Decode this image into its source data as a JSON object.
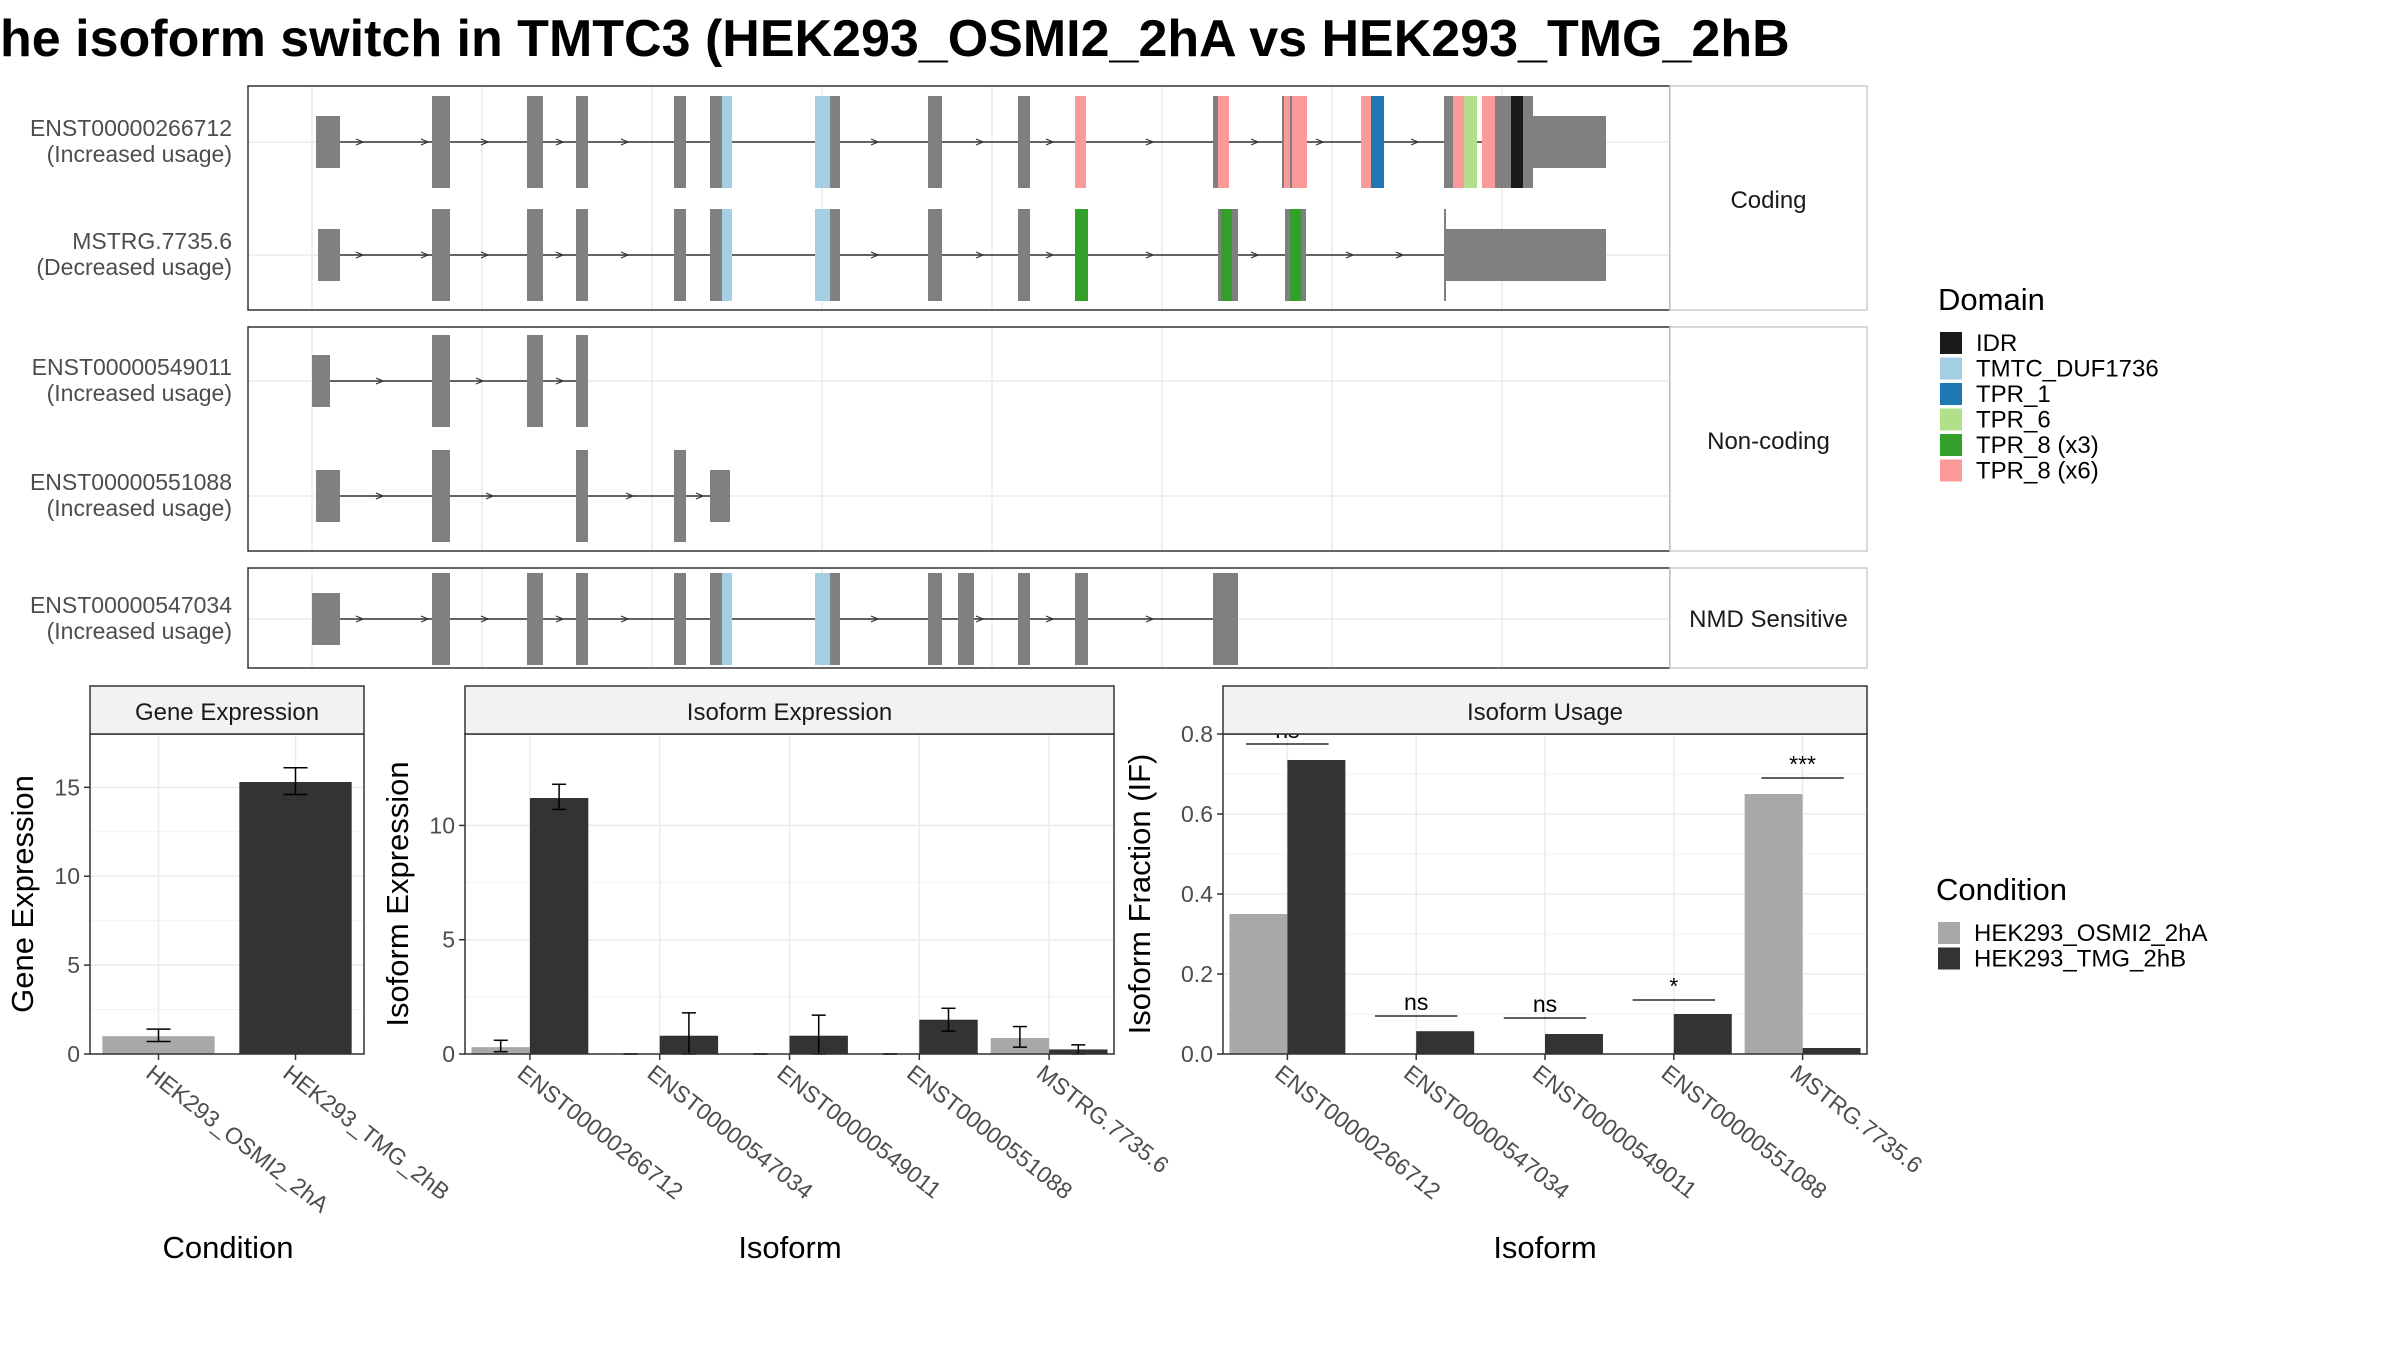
{
  "title": "he isoform switch in TMTC3 (HEK293_OSMI2_2hA vs HEK293_TMG_2hB",
  "colors": {
    "exon": "#808080",
    "cond_a": "#A9A9A9",
    "cond_b": "#333333",
    "IDR": "#1a1a1a",
    "TMTC_DUF1736": "#A6CEE3",
    "TPR_1": "#1F78B4",
    "TPR_6": "#B2DF8A",
    "TPR_8_x3": "#33A02C",
    "TPR_8_x6": "#FB9A99"
  },
  "transcript_panel": {
    "facets": [
      {
        "label": "Coding",
        "transcripts": [
          {
            "id": "ENST00000266712",
            "usage": "(Increased usage)"
          },
          {
            "id": "MSTRG.7735.6",
            "usage": "(Decreased usage)"
          }
        ]
      },
      {
        "label": "Non-coding",
        "transcripts": [
          {
            "id": "ENST00000549011",
            "usage": "(Increased usage)"
          },
          {
            "id": "ENST00000551088",
            "usage": "(Increased usage)"
          }
        ]
      },
      {
        "label": "NMD Sensitive",
        "transcripts": [
          {
            "id": "ENST00000547034",
            "usage": "(Increased usage)"
          }
        ]
      }
    ]
  },
  "legend_domain": {
    "title": "Domain",
    "entries": [
      {
        "label": "IDR",
        "color": "#1a1a1a"
      },
      {
        "label": "TMTC_DUF1736",
        "color": "#A6CEE3"
      },
      {
        "label": "TPR_1",
        "color": "#1F78B4"
      },
      {
        "label": "TPR_6",
        "color": "#B2DF8A"
      },
      {
        "label": "TPR_8 (x3)",
        "color": "#33A02C"
      },
      {
        "label": "TPR_8 (x6)",
        "color": "#FB9A99"
      }
    ]
  },
  "legend_condition": {
    "title": "Condition",
    "entries": [
      {
        "label": "HEK293_OSMI2_2hA",
        "color": "#A9A9A9"
      },
      {
        "label": "HEK293_TMG_2hB",
        "color": "#333333"
      }
    ]
  },
  "chart_data": [
    {
      "type": "bar",
      "title": "Gene Expression",
      "xlabel": "Condition",
      "ylabel": "Gene Expression",
      "ylim": [
        0,
        18
      ],
      "yticks": [
        0,
        5,
        10,
        15
      ],
      "categories": [
        "HEK293_OSMI2_2hA",
        "HEK293_TMG_2hB"
      ],
      "values": [
        1.0,
        15.3
      ],
      "errors": [
        [
          0.7,
          1.4
        ],
        [
          14.6,
          16.1
        ]
      ],
      "fill": [
        "HEK293_OSMI2_2hA",
        "HEK293_TMG_2hB"
      ]
    },
    {
      "type": "bar",
      "title": "Isoform Expression",
      "xlabel": "Isoform",
      "ylabel": "Isoform Expression",
      "ylim": [
        0,
        14
      ],
      "yticks": [
        0,
        5,
        10
      ],
      "categories": [
        "ENST00000266712",
        "ENST00000547034",
        "ENST00000549011",
        "ENST00000551088",
        "MSTRG.7735.6"
      ],
      "series": [
        {
          "name": "HEK293_OSMI2_2hA",
          "values": [
            0.3,
            0.0,
            0.0,
            0.0,
            0.7
          ],
          "errors": [
            [
              0.1,
              0.6
            ],
            [
              0,
              0
            ],
            [
              0,
              0
            ],
            [
              0,
              0
            ],
            [
              0.3,
              1.2
            ]
          ]
        },
        {
          "name": "HEK293_TMG_2hB",
          "values": [
            11.2,
            0.8,
            0.8,
            1.5,
            0.2
          ],
          "errors": [
            [
              10.7,
              11.8
            ],
            [
              0.0,
              1.8
            ],
            [
              0.0,
              1.7
            ],
            [
              1.0,
              2.0
            ],
            [
              0.0,
              0.4
            ]
          ]
        }
      ]
    },
    {
      "type": "bar",
      "title": "Isoform Usage",
      "xlabel": "Isoform",
      "ylabel": "Isoform Fraction (IF)",
      "ylim": [
        0,
        0.8
      ],
      "yticks": [
        "0.0",
        "0.2",
        "0.4",
        "0.6",
        "0.8"
      ],
      "categories": [
        "ENST00000266712",
        "ENST00000547034",
        "ENST00000549011",
        "ENST00000551088",
        "MSTRG.7735.6"
      ],
      "series": [
        {
          "name": "HEK293_OSMI2_2hA",
          "values": [
            0.35,
            0.0,
            0.0,
            0.0,
            0.65
          ]
        },
        {
          "name": "HEK293_TMG_2hB",
          "values": [
            0.735,
            0.057,
            0.05,
            0.1,
            0.015
          ]
        }
      ],
      "significance": [
        "ns",
        "ns",
        "ns",
        "*",
        "***"
      ],
      "significance_level": [
        0.775,
        0.095,
        0.09,
        0.135,
        0.69
      ]
    }
  ]
}
